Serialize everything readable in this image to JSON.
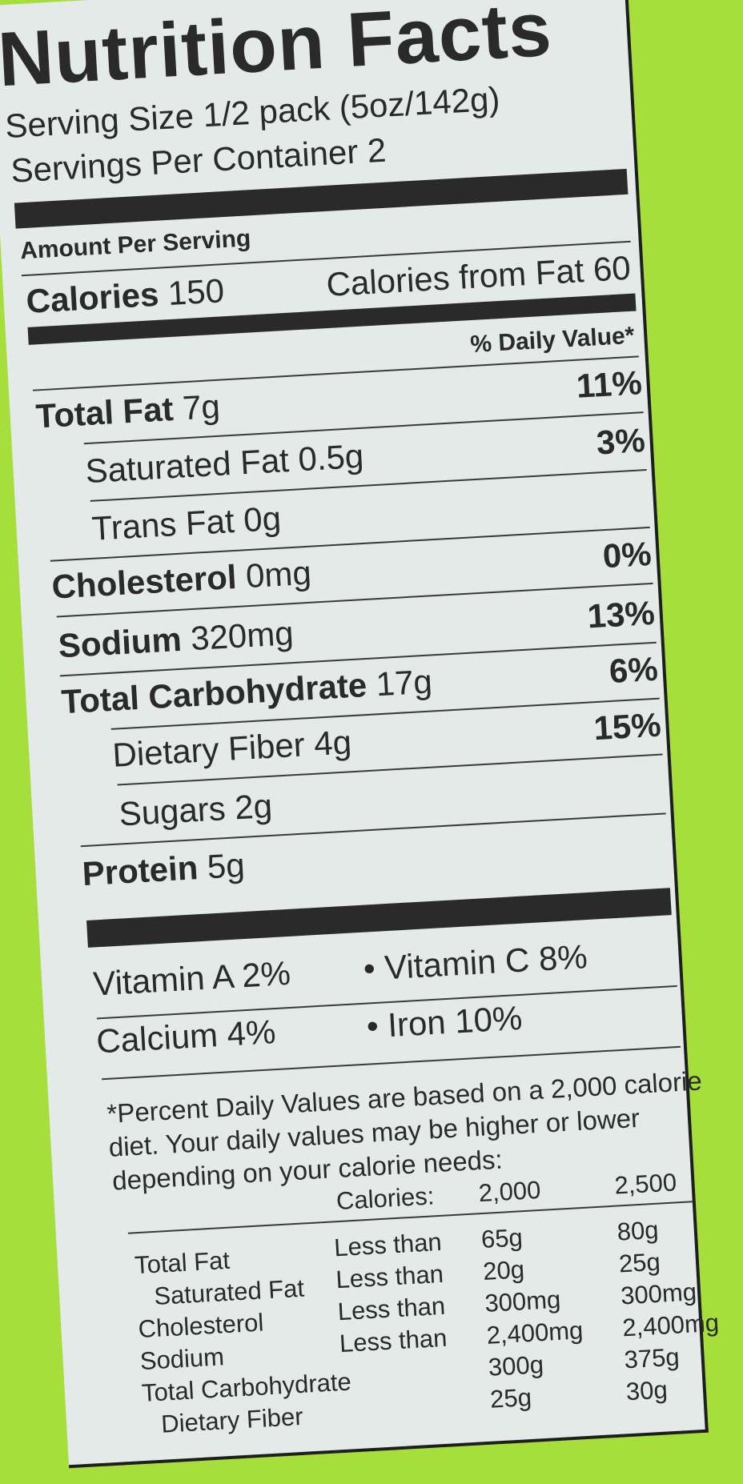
{
  "title": "Nutrition Facts",
  "serving_size": "Serving Size 1/2 pack (5oz/142g)",
  "servings_per_container": "Servings Per Container 2",
  "amount_per_serving": "Amount Per Serving",
  "calories": {
    "label": "Calories",
    "value": "150",
    "from_fat": "Calories from Fat 60"
  },
  "daily_value_header": "% Daily Value*",
  "nutrients": [
    {
      "name": "Total Fat",
      "amount": "7g",
      "dv": "11%"
    },
    {
      "name": "Saturated Fat",
      "amount": "0.5g",
      "dv": "3%"
    },
    {
      "name": "Trans Fat",
      "amount": "0g",
      "dv": ""
    },
    {
      "name": "Cholesterol",
      "amount": "0mg",
      "dv": "0%"
    },
    {
      "name": "Sodium",
      "amount": "320mg",
      "dv": "13%"
    },
    {
      "name": "Total Carbohydrate",
      "amount": "17g",
      "dv": "6%"
    },
    {
      "name": "Dietary Fiber",
      "amount": "4g",
      "dv": "15%"
    },
    {
      "name": "Sugars",
      "amount": "2g",
      "dv": ""
    },
    {
      "name": "Protein",
      "amount": "5g",
      "dv": ""
    }
  ],
  "vitamins": [
    {
      "left": "Vitamin A 2%",
      "right": "• Vitamin C 8%"
    },
    {
      "left": "Calcium 4%",
      "right": "• Iron 10%"
    }
  ],
  "footnote": [
    "*Percent Daily Values are based on a 2,000 calorie",
    "diet. Your daily values may be higher or lower",
    "depending on your calorie needs:"
  ],
  "reference_table": {
    "header": [
      "Calories:",
      "2,000",
      "2,500"
    ],
    "rows": [
      [
        "Total Fat",
        "Less than",
        "65g",
        "80g"
      ],
      [
        "Saturated Fat",
        "Less than",
        "20g",
        "25g"
      ],
      [
        "Cholesterol",
        "Less than",
        "300mg",
        "300mg"
      ],
      [
        "Sodium",
        "Less than",
        "2,400mg",
        "2,400mg"
      ],
      [
        "Total Carbohydrate",
        "",
        "300g",
        "375g"
      ],
      [
        "Dietary Fiber",
        "",
        "25g",
        "30g"
      ]
    ]
  },
  "colors": {
    "background": "#a6de3c",
    "label": "#e4eae8",
    "ink": "#2a2a2a"
  }
}
